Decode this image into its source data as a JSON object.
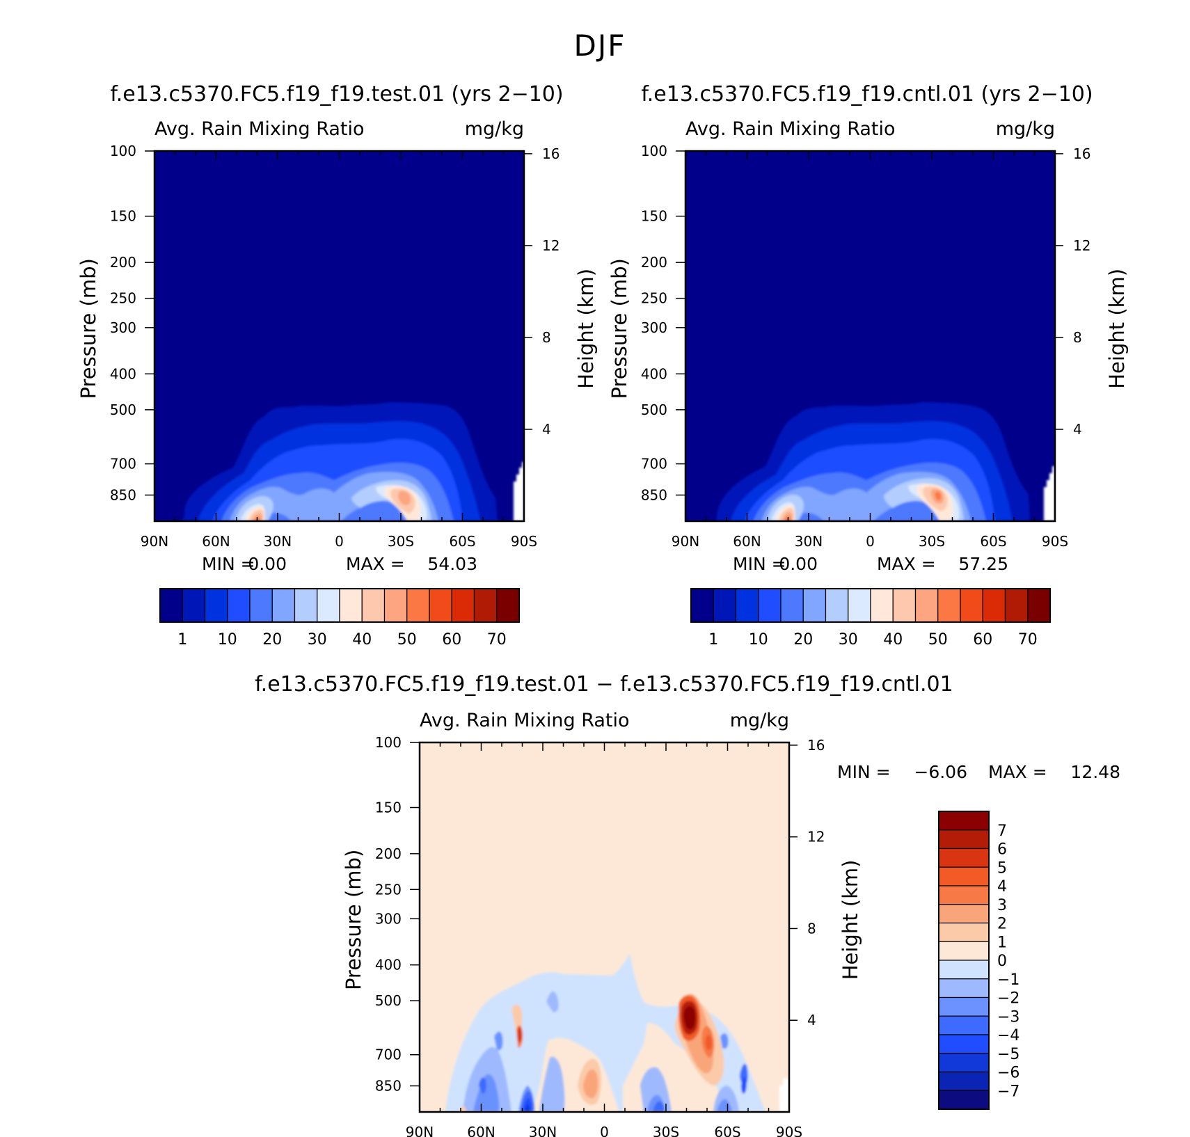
{
  "figure": {
    "title": "DJF"
  },
  "colors": {
    "abs_scale": [
      "#00008b",
      "#0017b8",
      "#0033e0",
      "#1f4dff",
      "#4d79ff",
      "#80a6ff",
      "#b3cdff",
      "#dceaff",
      "#ffe8d9",
      "#fdc8ad",
      "#fca580",
      "#fb7844",
      "#f24b1a",
      "#da2a06",
      "#b01b06",
      "#7a0000"
    ],
    "diff_scale": [
      "#0c0c80",
      "#0a24b3",
      "#1138d9",
      "#1f4dff",
      "#3d6bff",
      "#6b92ff",
      "#9fb9ff",
      "#cfe3ff",
      "#fde8d7",
      "#fbcaa9",
      "#f9a57a",
      "#f77a46",
      "#f25a26",
      "#d93512",
      "#b31d08",
      "#8b0000"
    ]
  },
  "chart_data": [
    {
      "type": "contour",
      "title": "f.e13.c5370.FC5.f19_f19.test.01 (yrs 2−10)",
      "field": "Avg. Rain Mixing Ratio",
      "units": "mg/kg",
      "xlabel": "",
      "ylabel": "Pressure (mb)",
      "y2label": "Height (km)",
      "x_ticks": [
        "90N",
        "60N",
        "30N",
        "0",
        "30S",
        "60S",
        "90S"
      ],
      "y_ticks": [
        100,
        150,
        200,
        250,
        300,
        400,
        500,
        700,
        850
      ],
      "y_range": [
        100,
        1000
      ],
      "y2_ticks": [
        16,
        12,
        8,
        4
      ],
      "min_label": "MIN =",
      "min_value": "0.00",
      "max_label": "MAX =",
      "max_value": "54.03",
      "colorbar_labels": [
        "1",
        "10",
        "20",
        "30",
        "40",
        "50",
        "60",
        "70"
      ],
      "contour_levels": [
        1,
        5,
        10,
        15,
        20,
        25,
        30,
        35,
        40,
        45,
        50,
        55,
        60,
        65,
        70
      ]
    },
    {
      "type": "contour",
      "title": "f.e13.c5370.FC5.f19_f19.cntl.01 (yrs 2−10)",
      "field": "Avg. Rain Mixing Ratio",
      "units": "mg/kg",
      "xlabel": "",
      "ylabel": "Pressure (mb)",
      "y2label": "Height (km)",
      "x_ticks": [
        "90N",
        "60N",
        "30N",
        "0",
        "30S",
        "60S",
        "90S"
      ],
      "y_ticks": [
        100,
        150,
        200,
        250,
        300,
        400,
        500,
        700,
        850
      ],
      "y_range": [
        100,
        1000
      ],
      "y2_ticks": [
        16,
        12,
        8,
        4
      ],
      "min_label": "MIN =",
      "min_value": "0.00",
      "max_label": "MAX =",
      "max_value": "57.25",
      "colorbar_labels": [
        "1",
        "10",
        "20",
        "30",
        "40",
        "50",
        "60",
        "70"
      ],
      "contour_levels": [
        1,
        5,
        10,
        15,
        20,
        25,
        30,
        35,
        40,
        45,
        50,
        55,
        60,
        65,
        70
      ]
    },
    {
      "type": "contour",
      "title": "f.e13.c5370.FC5.f19_f19.test.01 − f.e13.c5370.FC5.f19_f19.cntl.01",
      "field": "Avg. Rain Mixing Ratio",
      "units": "mg/kg",
      "xlabel": "",
      "ylabel": "Pressure (mb)",
      "y2label": "Height (km)",
      "x_ticks": [
        "90N",
        "60N",
        "30N",
        "0",
        "30S",
        "60S",
        "90S"
      ],
      "y_ticks": [
        100,
        150,
        200,
        250,
        300,
        400,
        500,
        700,
        850
      ],
      "y_range": [
        100,
        1000
      ],
      "y2_ticks": [
        16,
        12,
        8,
        4
      ],
      "min_label": "MIN =",
      "min_value": "−6.06",
      "max_label": "MAX =",
      "max_value": "12.48",
      "colorbar_labels": [
        "7",
        "6",
        "5",
        "4",
        "3",
        "2",
        "1",
        "0",
        "−1",
        "−2",
        "−3",
        "−4",
        "−5",
        "−6",
        "−7"
      ],
      "contour_levels": [
        -7,
        -6,
        -5,
        -4,
        -3,
        -2,
        -1,
        0,
        1,
        2,
        3,
        4,
        5,
        6,
        7
      ]
    }
  ]
}
